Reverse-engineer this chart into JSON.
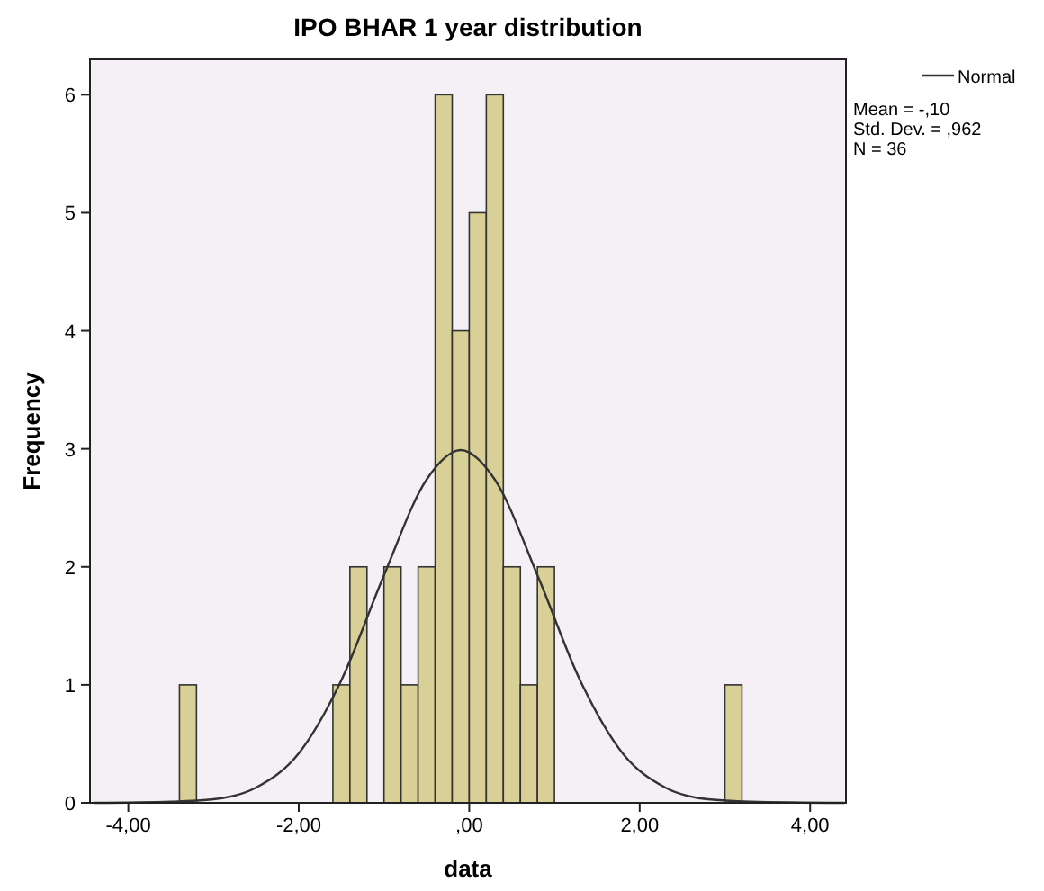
{
  "chart_data": {
    "type": "histogram",
    "title": "IPO BHAR 1 year distribution",
    "xlabel": "data",
    "ylabel": "Frequency",
    "bins": [
      -3.4,
      -3.2,
      -3.0,
      -2.8,
      -2.6,
      -2.4,
      -2.2,
      -2.0,
      -1.8,
      -1.6,
      -1.4,
      -1.2,
      -1.0,
      -0.8,
      -0.6,
      -0.4,
      -0.2,
      0.0,
      0.2,
      0.4,
      0.6,
      0.8,
      1.0,
      1.2,
      1.4,
      1.6,
      1.8,
      2.0,
      2.2,
      2.4,
      2.6,
      2.8,
      3.0,
      3.2
    ],
    "values": [
      1,
      0,
      0,
      0,
      0,
      0,
      0,
      0,
      0,
      1,
      2,
      0,
      2,
      1,
      2,
      6,
      4,
      5,
      6,
      2,
      1,
      2,
      0,
      0,
      0,
      0,
      0,
      0,
      0,
      0,
      0,
      0,
      1
    ],
    "color": "#d8d096",
    "series": [
      {
        "type": "line",
        "name": "Normal",
        "color": "#333333",
        "x": [
          -4.4,
          -3.5,
          -3.0,
          -2.5,
          -2.0,
          -1.5,
          -1.0,
          -0.5,
          -0.1,
          0.3,
          0.8,
          1.3,
          1.8,
          2.3,
          2.8,
          3.3,
          4.4
        ],
        "values": [
          0,
          0.01,
          0.03,
          0.13,
          0.42,
          1.04,
          1.93,
          2.74,
          2.99,
          2.74,
          1.93,
          1.04,
          0.42,
          0.13,
          0.03,
          0.01,
          0
        ]
      }
    ],
    "xlim": [
      -4.45,
      4.42
    ],
    "ylim": [
      0,
      6.3
    ],
    "xticks": [
      {
        "value": -4,
        "label": "-4,00"
      },
      {
        "value": -2,
        "label": "-2,00"
      },
      {
        "value": 0,
        "label": ",00"
      },
      {
        "value": 2,
        "label": "2,00"
      },
      {
        "value": 4,
        "label": "4,00"
      }
    ],
    "yticks": [
      0,
      1,
      2,
      3,
      4,
      5,
      6
    ],
    "grid": false,
    "legend": "top right",
    "annotations": [
      "Mean = -,10",
      "Std. Dev. = ,962",
      "N = 36"
    ]
  }
}
